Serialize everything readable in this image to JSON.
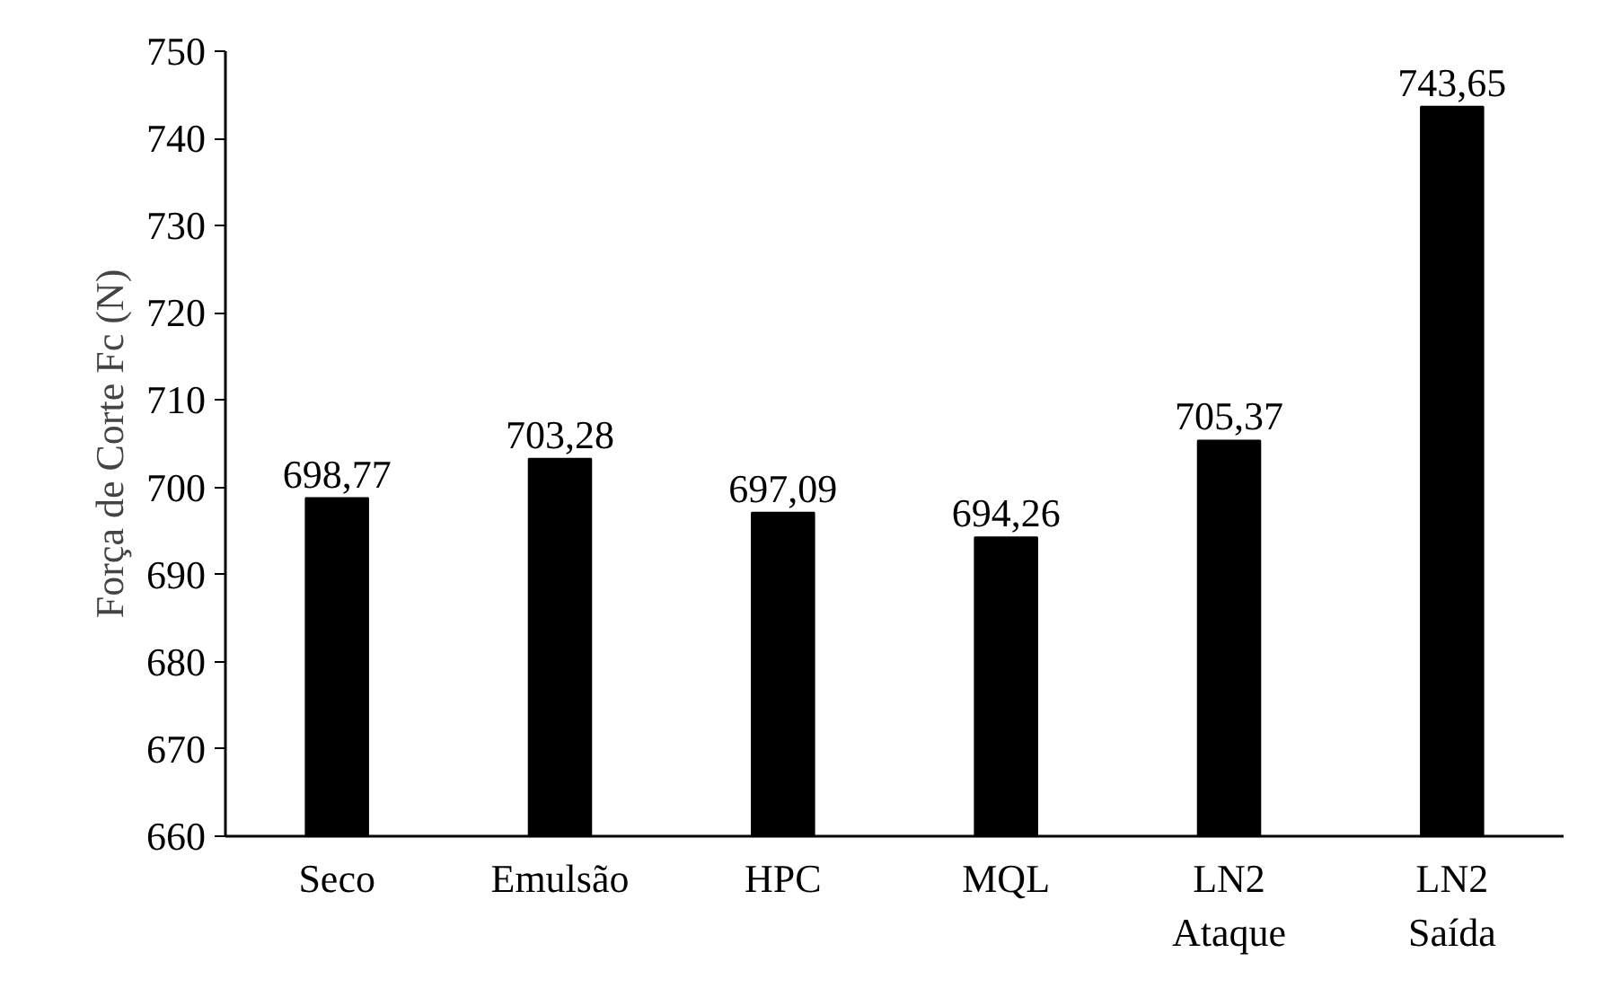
{
  "chart_data": {
    "type": "bar",
    "ylabel": "Força de Corte Fc (N)",
    "categories": [
      "Seco",
      "Emulsão",
      "HPC",
      "MQL",
      "LN2\nAtaque",
      "LN2\nSaída"
    ],
    "values": [
      698.77,
      703.28,
      697.09,
      694.26,
      705.37,
      743.65
    ],
    "value_labels": [
      "698,77",
      "703,28",
      "697,09",
      "694,26",
      "705,37",
      "743,65"
    ],
    "color": "#000000",
    "ylim": [
      660,
      750
    ],
    "yticks": [
      660,
      670,
      680,
      690,
      700,
      710,
      720,
      730,
      740,
      750
    ],
    "grid": false
  }
}
